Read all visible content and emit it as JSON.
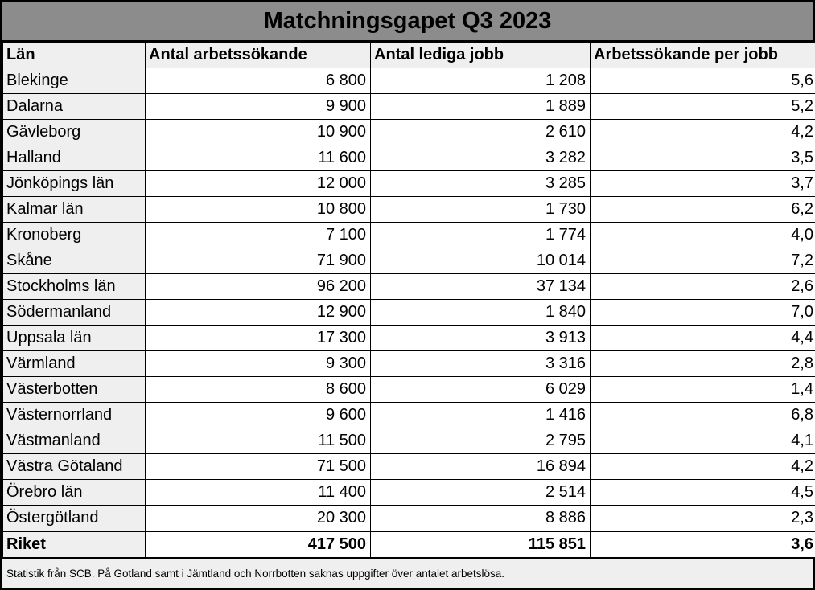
{
  "title": "Matchningsgapet Q3 2023",
  "table": {
    "columns": [
      "Län",
      "Antal arbetssökande",
      "Antal lediga jobb",
      "Arbetssökande per jobb"
    ],
    "rows": [
      {
        "lan": "Blekinge",
        "arbetssokande": "6 800",
        "lediga_jobb": "1 208",
        "per_jobb": "5,6"
      },
      {
        "lan": "Dalarna",
        "arbetssokande": "9 900",
        "lediga_jobb": "1 889",
        "per_jobb": "5,2"
      },
      {
        "lan": "Gävleborg",
        "arbetssokande": "10 900",
        "lediga_jobb": "2 610",
        "per_jobb": "4,2"
      },
      {
        "lan": "Halland",
        "arbetssokande": "11 600",
        "lediga_jobb": "3 282",
        "per_jobb": "3,5"
      },
      {
        "lan": "Jönköpings län",
        "arbetssokande": "12 000",
        "lediga_jobb": "3 285",
        "per_jobb": "3,7"
      },
      {
        "lan": "Kalmar län",
        "arbetssokande": "10 800",
        "lediga_jobb": "1 730",
        "per_jobb": "6,2"
      },
      {
        "lan": "Kronoberg",
        "arbetssokande": "7 100",
        "lediga_jobb": "1 774",
        "per_jobb": "4,0"
      },
      {
        "lan": "Skåne",
        "arbetssokande": "71 900",
        "lediga_jobb": "10 014",
        "per_jobb": "7,2"
      },
      {
        "lan": "Stockholms län",
        "arbetssokande": "96 200",
        "lediga_jobb": "37 134",
        "per_jobb": "2,6"
      },
      {
        "lan": "Södermanland",
        "arbetssokande": "12 900",
        "lediga_jobb": "1 840",
        "per_jobb": "7,0"
      },
      {
        "lan": "Uppsala län",
        "arbetssokande": "17 300",
        "lediga_jobb": "3 913",
        "per_jobb": "4,4"
      },
      {
        "lan": "Värmland",
        "arbetssokande": "9 300",
        "lediga_jobb": "3 316",
        "per_jobb": "2,8"
      },
      {
        "lan": "Västerbotten",
        "arbetssokande": "8 600",
        "lediga_jobb": "6 029",
        "per_jobb": "1,4"
      },
      {
        "lan": "Västernorrland",
        "arbetssokande": "9 600",
        "lediga_jobb": "1 416",
        "per_jobb": "6,8"
      },
      {
        "lan": "Västmanland",
        "arbetssokande": "11 500",
        "lediga_jobb": "2 795",
        "per_jobb": "4,1"
      },
      {
        "lan": "Västra Götaland",
        "arbetssokande": "71 500",
        "lediga_jobb": "16 894",
        "per_jobb": "4,2"
      },
      {
        "lan": "Örebro län",
        "arbetssokande": "11 400",
        "lediga_jobb": "2 514",
        "per_jobb": "4,5"
      },
      {
        "lan": "Östergötland",
        "arbetssokande": "20 300",
        "lediga_jobb": "8 886",
        "per_jobb": "2,3"
      }
    ],
    "total": {
      "lan": "Riket",
      "arbetssokande": "417 500",
      "lediga_jobb": "115 851",
      "per_jobb": "3,6"
    }
  },
  "footer": {
    "note": "Statistik från SCB. På Gotland samt i Jämtland och Norrbotten saknas uppgifter över antalet arbetslösa."
  },
  "colors": {
    "title_bg": "#8c8c8c",
    "header_bg": "#efefef",
    "label_col_bg": "#efefef",
    "footer_bg": "#efefef",
    "border": "#000000",
    "text": "#000000"
  },
  "chart_data": {
    "type": "table",
    "title": "Matchningsgapet Q3 2023",
    "columns": [
      "Län",
      "Antal arbetssökande",
      "Antal lediga jobb",
      "Arbetssökande per jobb"
    ],
    "rows": [
      [
        "Blekinge",
        6800,
        1208,
        5.6
      ],
      [
        "Dalarna",
        9900,
        1889,
        5.2
      ],
      [
        "Gävleborg",
        10900,
        2610,
        4.2
      ],
      [
        "Halland",
        11600,
        3282,
        3.5
      ],
      [
        "Jönköpings län",
        12000,
        3285,
        3.7
      ],
      [
        "Kalmar län",
        10800,
        1730,
        6.2
      ],
      [
        "Kronoberg",
        7100,
        1774,
        4.0
      ],
      [
        "Skåne",
        71900,
        10014,
        7.2
      ],
      [
        "Stockholms län",
        96200,
        37134,
        2.6
      ],
      [
        "Södermanland",
        12900,
        1840,
        7.0
      ],
      [
        "Uppsala län",
        17300,
        3913,
        4.4
      ],
      [
        "Värmland",
        9300,
        3316,
        2.8
      ],
      [
        "Västerbotten",
        8600,
        6029,
        1.4
      ],
      [
        "Västernorrland",
        9600,
        1416,
        6.8
      ],
      [
        "Västmanland",
        11500,
        2795,
        4.1
      ],
      [
        "Västra Götaland",
        71500,
        16894,
        4.2
      ],
      [
        "Örebro län",
        11400,
        2514,
        4.5
      ],
      [
        "Östergötland",
        20300,
        8886,
        2.3
      ]
    ],
    "total_row": [
      "Riket",
      417500,
      115851,
      3.6
    ],
    "note": "Statistik från SCB. På Gotland samt i Jämtland och Norrbotten saknas uppgifter över antalet arbetslösa.",
    "decimal_separator": ",",
    "thousands_separator": " "
  }
}
